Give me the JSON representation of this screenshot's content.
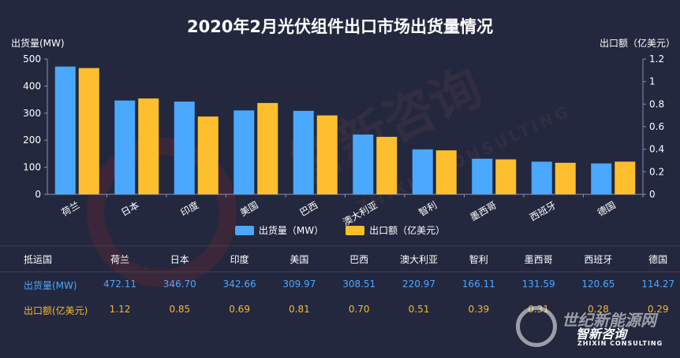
{
  "chart_data": {
    "type": "bar",
    "title": "2020年2月光伏组件出口市场出货量情况",
    "y_left_label": "出货量(MW)",
    "y_right_label": "出口额（亿美元）",
    "y_left_lim": [
      0,
      500
    ],
    "y_left_ticks": [
      0,
      100,
      200,
      300,
      400,
      500
    ],
    "y_right_lim": [
      0,
      1.2
    ],
    "y_right_ticks": [
      0,
      0.2,
      0.4,
      0.6,
      0.8,
      1,
      1.2
    ],
    "categories": [
      "荷兰",
      "日本",
      "印度",
      "美国",
      "巴西",
      "澳大利亚",
      "智利",
      "墨西哥",
      "西班牙",
      "德国"
    ],
    "series": [
      {
        "name": "出货量（MW）",
        "axis": "left",
        "color": "#4aa8ff",
        "values": [
          472.11,
          346.7,
          342.66,
          309.97,
          308.51,
          220.97,
          166.11,
          131.59,
          120.65,
          114.27
        ]
      },
      {
        "name": "出口额（亿美元）",
        "axis": "right",
        "color": "#fdbf2d",
        "values": [
          1.12,
          0.85,
          0.69,
          0.81,
          0.7,
          0.51,
          0.39,
          0.31,
          0.28,
          0.29
        ]
      }
    ],
    "legend_position": "bottom",
    "grid": false
  },
  "table": {
    "header_label": "抵运国",
    "row_ship_label": "出货量(MW)",
    "row_export_label": "出口额(亿美元)",
    "ship_values": [
      "472.11",
      "346.70",
      "342.66",
      "309.97",
      "308.51",
      "220.97",
      "166.11",
      "131.59",
      "120.65",
      "114.27"
    ],
    "export_values": [
      "1.12",
      "0.85",
      "0.69",
      "0.81",
      "0.70",
      "0.51",
      "0.39",
      "0.31",
      "0.28",
      "0.29"
    ]
  },
  "watermark": {
    "main": "智新咨询",
    "sub": "ZHIXIN CONSULTING"
  },
  "logo": {
    "line1": "世纪新能源网",
    "line2": "智新咨询",
    "line3": "ZHIXIN CONSULTING"
  }
}
